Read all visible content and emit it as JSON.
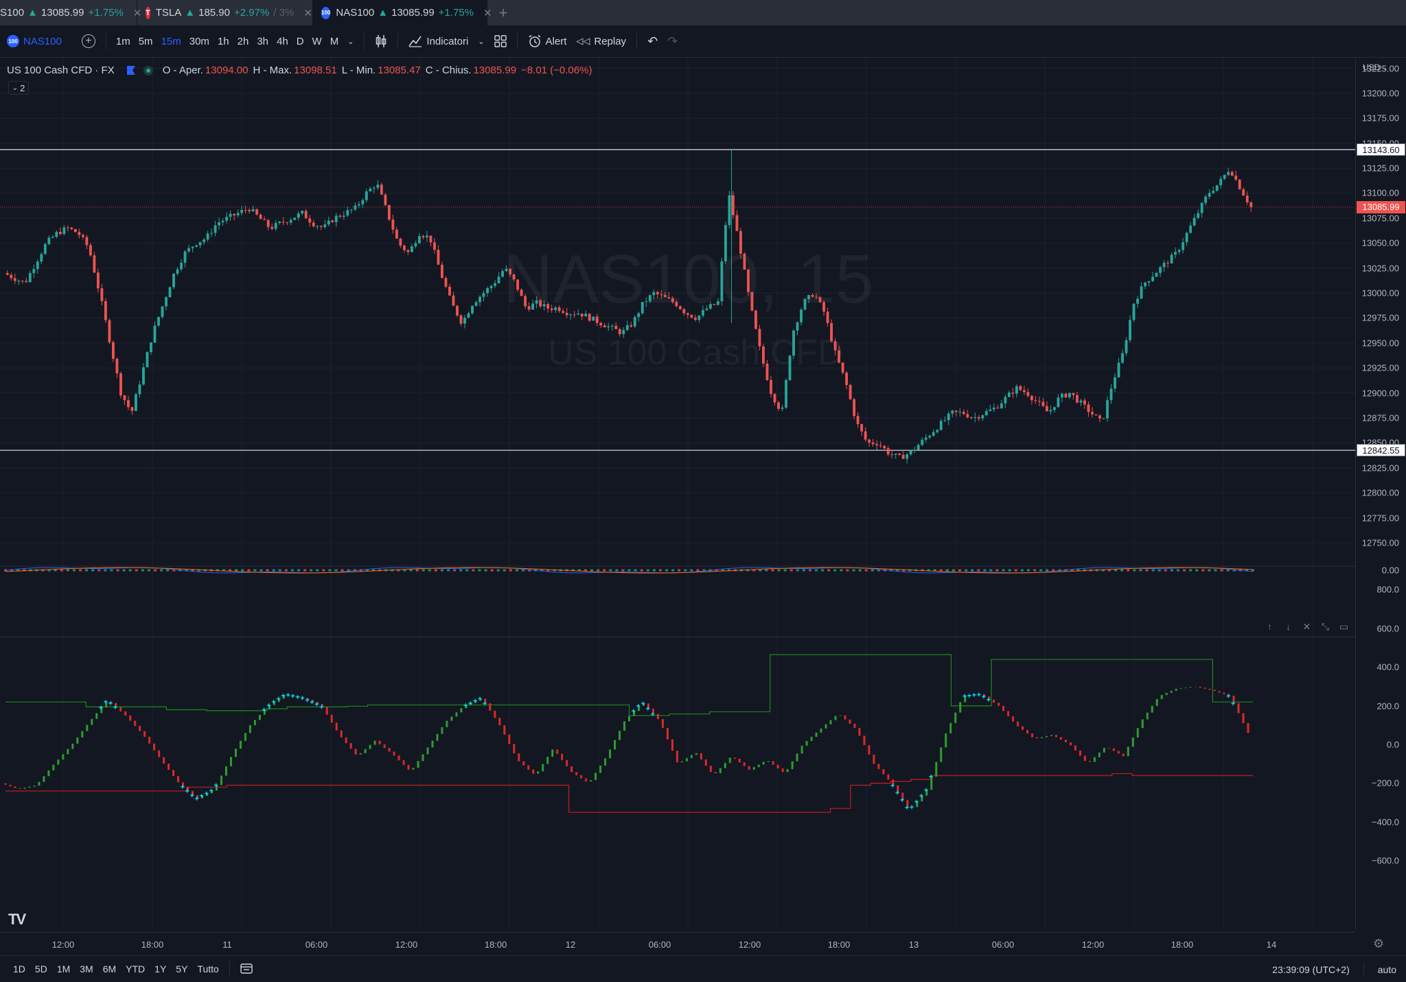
{
  "tabs": [
    {
      "symbol": "S100",
      "price": "13085.99",
      "change": "+1.75%",
      "close": "✕"
    },
    {
      "symbol": "TSLA",
      "price": "185.90",
      "change": "+2.97%",
      "extra": "/ 3%",
      "close": "✕"
    },
    {
      "symbol": "NAS100",
      "price": "13085.99",
      "change": "+1.75%",
      "close": "✕"
    }
  ],
  "toolbar": {
    "symbol": "NAS100",
    "intervals": [
      "1m",
      "5m",
      "15m",
      "30m",
      "1h",
      "2h",
      "3h",
      "4h",
      "D",
      "W",
      "M"
    ],
    "active_interval": "15m",
    "indicators": "Indicatori",
    "alert": "Alert",
    "replay": "Replay"
  },
  "legend": {
    "title": "US 100 Cash CFD · FX",
    "open_label": "O - Aper.",
    "open": "13094.00",
    "high_label": "H - Max.",
    "high": "13098.51",
    "low_label": "L - Min.",
    "low": "13085.47",
    "close_label": "C - Chius.",
    "close": "13085.99",
    "change": "−8.01 (−0.06%)",
    "collapsed_count": "2"
  },
  "watermark": {
    "symbol": "NAS100, 15",
    "description": "US 100 Cash CFD"
  },
  "price_axis": {
    "currency": "USD",
    "ticks": [
      "13225.00",
      "13200.00",
      "13175.00",
      "13150.00",
      "13125.00",
      "13100.00",
      "13075.00",
      "13050.00",
      "13025.00",
      "13000.00",
      "12975.00",
      "12950.00",
      "12925.00",
      "12900.00",
      "12875.00",
      "12850.00",
      "12825.00",
      "12800.00",
      "12775.00",
      "12750.00"
    ],
    "line_upper": "13143.60",
    "line_lower": "12842.55",
    "last_price": "13085.99"
  },
  "indicator_axis": {
    "macd_zero": "0.00",
    "ticks": [
      "800.0",
      "600.0",
      "400.0",
      "200.0",
      "0.0",
      "−200.0",
      "−400.0",
      "−600.0"
    ]
  },
  "time_axis": [
    "12:00",
    "18:00",
    "11",
    "06:00",
    "12:00",
    "18:00",
    "12",
    "06:00",
    "12:00",
    "18:00",
    "13",
    "06:00",
    "12:00",
    "18:00",
    "14"
  ],
  "bottom": {
    "ranges": [
      "1D",
      "5D",
      "1M",
      "3M",
      "6M",
      "YTD",
      "1Y",
      "5Y",
      "Tutto"
    ],
    "clock": "23:39:09 (UTC+2)",
    "scale_mode": "auto"
  },
  "colors": {
    "up": "#26a69a",
    "down": "#ef5350",
    "accent": "#2962ff",
    "marker": "#00e5ff"
  },
  "chart_data": {
    "type": "candlestick",
    "ylim": [
      12730,
      13235
    ],
    "horizontal_lines": [
      13143.6,
      12842.55
    ],
    "close_series": [
      13020,
      13015,
      13010,
      13030,
      13050,
      13060,
      13065,
      13060,
      13045,
      13000,
      12950,
      12900,
      12880,
      12920,
      12960,
      12990,
      13020,
      13040,
      13050,
      13055,
      13070,
      13075,
      13080,
      13085,
      13075,
      13065,
      13070,
      13075,
      13080,
      13070,
      13065,
      13075,
      13080,
      13085,
      13100,
      13110,
      13080,
      13050,
      13040,
      13060,
      13055,
      13020,
      12990,
      12970,
      12990,
      13000,
      13010,
      13025,
      13010,
      12985,
      12990,
      12985,
      12985,
      12980,
      12980,
      12975,
      12970,
      12965,
      12960,
      12970,
      12990,
      13000,
      12995,
      12990,
      12980,
      12975,
      12985,
      12990,
      13100,
      13050,
      12990,
      12940,
      12900,
      12880,
      12960,
      12990,
      13000,
      12980,
      12940,
      12910,
      12870,
      12850,
      12850,
      12840,
      12835,
      12840,
      12850,
      12860,
      12870,
      12880,
      12880,
      12875,
      12880,
      12885,
      12895,
      12905,
      12900,
      12890,
      12880,
      12895,
      12900,
      12890,
      12880,
      12870,
      12910,
      12940,
      12990,
      13010,
      13020,
      13030,
      13040,
      13060,
      13080,
      13100,
      13110,
      13125,
      13105,
      13086
    ]
  },
  "indicator_data": {
    "upper_band": [
      220,
      220,
      220,
      220,
      195,
      195,
      195,
      195,
      180,
      180,
      175,
      175,
      175,
      185,
      195,
      195,
      195,
      198,
      205,
      205,
      205,
      205,
      205,
      205,
      205,
      205,
      205,
      205,
      205,
      205,
      205,
      150,
      150,
      158,
      158,
      170,
      170,
      170,
      465,
      465,
      465,
      465,
      465,
      465,
      465,
      465,
      465,
      200,
      200,
      440,
      440,
      440,
      440,
      440,
      440,
      440,
      440,
      440,
      440,
      440,
      220,
      220
    ],
    "lower_band": [
      -240,
      -240,
      -240,
      -240,
      -240,
      -240,
      -240,
      -240,
      -240,
      -220,
      -220,
      -210,
      -210,
      -210,
      -210,
      -210,
      -210,
      -210,
      -210,
      -210,
      -210,
      -210,
      -210,
      -210,
      -210,
      -210,
      -210,
      -210,
      -350,
      -350,
      -350,
      -350,
      -350,
      -350,
      -350,
      -350,
      -350,
      -350,
      -350,
      -350,
      -350,
      -330,
      -210,
      -200,
      -190,
      -180,
      -160,
      -160,
      -160,
      -160,
      -160,
      -160,
      -160,
      -160,
      -160,
      -150,
      -160,
      -160,
      -160,
      -160,
      -160,
      -160
    ],
    "oscillator": [
      -200,
      -230,
      -210,
      -100,
      0,
      120,
      230,
      150,
      50,
      -80,
      -200,
      -280,
      -230,
      -50,
      100,
      200,
      260,
      240,
      200,
      50,
      -60,
      20,
      -50,
      -140,
      -10,
      120,
      200,
      240,
      100,
      -80,
      -160,
      -20,
      -140,
      -200,
      -60,
      120,
      220,
      120,
      -100,
      -40,
      -160,
      -60,
      -130,
      -80,
      -150,
      0,
      80,
      160,
      80,
      -100,
      -200,
      -340,
      -230,
      50,
      250,
      260,
      200,
      100,
      30,
      50,
      0,
      -100,
      -10,
      -60,
      120,
      250,
      290,
      300,
      280,
      250,
      60
    ]
  }
}
